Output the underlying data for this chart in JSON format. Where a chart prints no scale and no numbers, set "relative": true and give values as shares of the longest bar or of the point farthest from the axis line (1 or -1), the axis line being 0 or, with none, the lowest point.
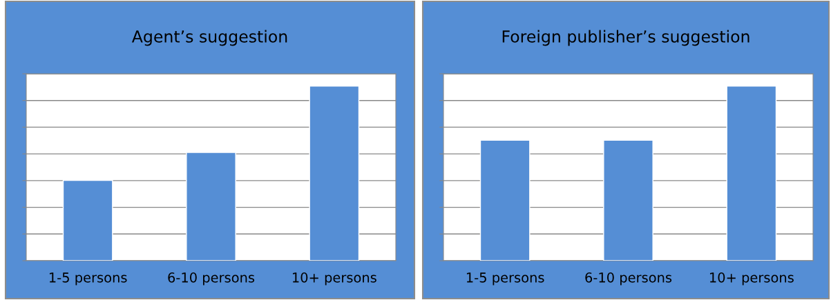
{
  "chart_data": [
    {
      "type": "bar",
      "title": "Agent’s suggestion",
      "categories": [
        "1-5 persons",
        "6-10 persons",
        "10+ persons"
      ],
      "relative": true,
      "grid": "y",
      "legend": false,
      "tick_labels": "x",
      "series": [
        {
          "color": "#558ed5",
          "values": [
            0.46,
            0.62,
            1
          ]
        }
      ]
    },
    {
      "type": "bar",
      "title": "Foreign publisher’s suggestion",
      "categories": [
        "1-5 persons",
        "6-10 persons",
        "10+ persons"
      ],
      "relative": true,
      "grid": "y",
      "legend": false,
      "tick_labels": "x",
      "series": [
        {
          "color": "#558ed5",
          "values": [
            0.69,
            0.69,
            1
          ]
        }
      ]
    }
  ]
}
